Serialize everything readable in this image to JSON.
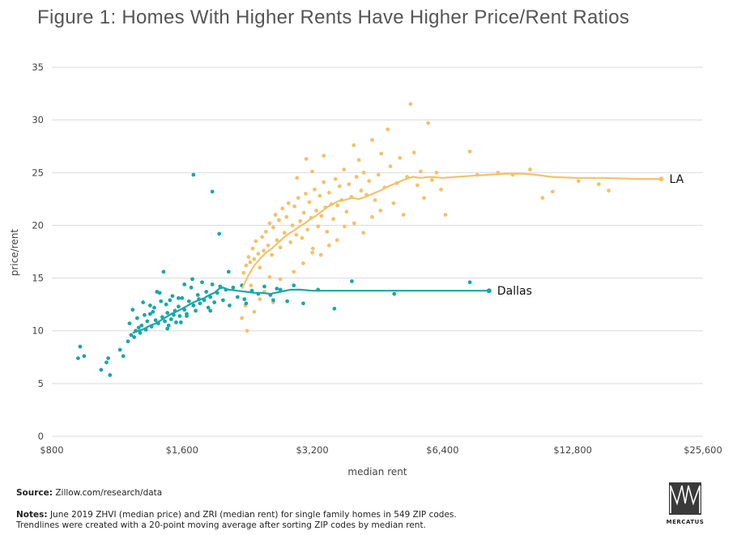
{
  "title": "Figure 1: Homes With Higher Rents Have Higher Price/Rent Ratios",
  "source_label": "Source:",
  "source_text": "Zillow.com/research/data",
  "notes_label": "Notes:",
  "notes_line1": "June 2019 ZHVI (median price) and ZRI (median rent) for single family homes in 549 ZIP codes.",
  "notes_line2": "Trendlines were created with a 20-point moving average after sorting ZIP codes by median rent.",
  "logo_text": "MERCATUS",
  "colors": {
    "LA": "#f2c26b",
    "Dallas": "#1aa7a8",
    "grid": "#d9d9d9"
  },
  "chart_data": {
    "type": "scatter",
    "xlabel": "median rent",
    "ylabel": "price/rent",
    "x_scale": "log2",
    "xlim": [
      800,
      25600
    ],
    "ylim": [
      0,
      35
    ],
    "grid": "horizontal",
    "x_ticks": [
      800,
      1600,
      3200,
      6400,
      12800,
      25600
    ],
    "x_tick_labels": [
      "$800",
      "$1,600",
      "$3,200",
      "$6,400",
      "$12,800",
      "$25,600"
    ],
    "y_ticks": [
      0,
      5,
      10,
      15,
      20,
      25,
      30,
      35
    ],
    "series": [
      {
        "name": "LA",
        "kind": "scatter",
        "points": [
          [
            2220,
            15.5
          ],
          [
            2250,
            16.2
          ],
          [
            2280,
            17.0
          ],
          [
            2300,
            16.5
          ],
          [
            2330,
            17.8
          ],
          [
            2350,
            16.8
          ],
          [
            2370,
            18.5
          ],
          [
            2400,
            17.3
          ],
          [
            2420,
            16.0
          ],
          [
            2450,
            18.9
          ],
          [
            2470,
            17.6
          ],
          [
            2500,
            19.4
          ],
          [
            2530,
            18.1
          ],
          [
            2550,
            20.2
          ],
          [
            2580,
            17.2
          ],
          [
            2600,
            19.8
          ],
          [
            2630,
            21.0
          ],
          [
            2650,
            18.6
          ],
          [
            2680,
            20.5
          ],
          [
            2700,
            17.9
          ],
          [
            2730,
            21.6
          ],
          [
            2760,
            19.3
          ],
          [
            2790,
            20.8
          ],
          [
            2820,
            22.1
          ],
          [
            2850,
            18.4
          ],
          [
            2880,
            20.0
          ],
          [
            2910,
            21.8
          ],
          [
            2940,
            19.1
          ],
          [
            2970,
            22.6
          ],
          [
            3000,
            20.4
          ],
          [
            3030,
            18.8
          ],
          [
            3060,
            21.2
          ],
          [
            3090,
            23.0
          ],
          [
            3120,
            19.6
          ],
          [
            3150,
            22.2
          ],
          [
            3180,
            20.7
          ],
          [
            3210,
            17.8
          ],
          [
            3240,
            23.4
          ],
          [
            3270,
            21.4
          ],
          [
            3300,
            19.9
          ],
          [
            3330,
            22.8
          ],
          [
            3360,
            20.9
          ],
          [
            3400,
            24.1
          ],
          [
            3430,
            21.7
          ],
          [
            3460,
            19.4
          ],
          [
            3500,
            23.1
          ],
          [
            3540,
            22.0
          ],
          [
            3580,
            20.6
          ],
          [
            3620,
            24.4
          ],
          [
            3660,
            21.9
          ],
          [
            3700,
            23.7
          ],
          [
            3740,
            22.4
          ],
          [
            3790,
            25.3
          ],
          [
            3840,
            21.3
          ],
          [
            3890,
            23.9
          ],
          [
            3940,
            22.7
          ],
          [
            3990,
            27.6
          ],
          [
            4050,
            24.6
          ],
          [
            4100,
            26.2
          ],
          [
            4150,
            23.3
          ],
          [
            4210,
            25.0
          ],
          [
            4270,
            22.9
          ],
          [
            4330,
            24.2
          ],
          [
            4400,
            28.1
          ],
          [
            4470,
            22.4
          ],
          [
            4550,
            24.8
          ],
          [
            4620,
            26.8
          ],
          [
            4700,
            23.6
          ],
          [
            4780,
            29.1
          ],
          [
            4850,
            25.6
          ],
          [
            4930,
            22.1
          ],
          [
            5020,
            24.0
          ],
          [
            5100,
            26.4
          ],
          [
            5200,
            21.0
          ],
          [
            5300,
            24.6
          ],
          [
            5400,
            31.5
          ],
          [
            5500,
            26.9
          ],
          [
            5600,
            23.8
          ],
          [
            5700,
            25.1
          ],
          [
            5800,
            22.6
          ],
          [
            5930,
            29.7
          ],
          [
            6050,
            24.3
          ],
          [
            6200,
            25.0
          ],
          [
            6350,
            23.4
          ],
          [
            6500,
            21.0
          ],
          [
            7400,
            27.0
          ],
          [
            7700,
            24.8
          ],
          [
            8600,
            25.0
          ],
          [
            9300,
            24.8
          ],
          [
            10200,
            25.3
          ],
          [
            10900,
            22.6
          ],
          [
            11500,
            23.2
          ],
          [
            13200,
            24.2
          ],
          [
            14700,
            23.9
          ],
          [
            15500,
            23.3
          ],
          [
            2350,
            11.8
          ],
          [
            2200,
            11.2
          ],
          [
            2260,
            10.0
          ],
          [
            2480,
            13.7
          ],
          [
            2600,
            12.7
          ],
          [
            2240,
            12.4
          ],
          [
            2310,
            14.3
          ],
          [
            2420,
            13.0
          ],
          [
            2550,
            15.1
          ],
          [
            2700,
            14.9
          ],
          [
            3050,
            16.4
          ],
          [
            2900,
            15.6
          ],
          [
            3200,
            17.4
          ],
          [
            3350,
            17.2
          ],
          [
            3500,
            18.1
          ],
          [
            3650,
            18.6
          ],
          [
            3800,
            19.9
          ],
          [
            4000,
            20.2
          ],
          [
            4200,
            19.3
          ],
          [
            4400,
            20.8
          ],
          [
            4600,
            21.4
          ],
          [
            3100,
            26.3
          ],
          [
            3400,
            26.6
          ],
          [
            3200,
            25.1
          ],
          [
            2950,
            24.5
          ]
        ]
      },
      {
        "name": "LA trend",
        "kind": "line",
        "points": [
          [
            2200,
            14.0
          ],
          [
            2280,
            15.3
          ],
          [
            2350,
            16.2
          ],
          [
            2430,
            16.9
          ],
          [
            2500,
            17.4
          ],
          [
            2580,
            17.8
          ],
          [
            2660,
            18.3
          ],
          [
            2740,
            18.8
          ],
          [
            2820,
            19.2
          ],
          [
            2900,
            19.5
          ],
          [
            2990,
            19.9
          ],
          [
            3080,
            20.2
          ],
          [
            3170,
            20.6
          ],
          [
            3260,
            20.9
          ],
          [
            3360,
            21.3
          ],
          [
            3460,
            21.7
          ],
          [
            3560,
            22.0
          ],
          [
            3680,
            22.3
          ],
          [
            3800,
            22.4
          ],
          [
            3950,
            22.6
          ],
          [
            4100,
            22.5
          ],
          [
            4250,
            22.7
          ],
          [
            4420,
            23.0
          ],
          [
            4600,
            23.3
          ],
          [
            4800,
            23.7
          ],
          [
            5000,
            24.0
          ],
          [
            5200,
            24.3
          ],
          [
            5450,
            24.6
          ],
          [
            5700,
            24.5
          ],
          [
            6000,
            24.6
          ],
          [
            6400,
            24.5
          ],
          [
            6900,
            24.6
          ],
          [
            7500,
            24.7
          ],
          [
            8200,
            24.8
          ],
          [
            9000,
            24.9
          ],
          [
            9800,
            24.9
          ],
          [
            10500,
            24.8
          ],
          [
            11400,
            24.6
          ],
          [
            13000,
            24.5
          ],
          [
            15000,
            24.5
          ],
          [
            18000,
            24.4
          ],
          [
            20500,
            24.4
          ]
        ]
      },
      {
        "name": "Dallas",
        "kind": "scatter",
        "points": [
          [
            920,
            7.4
          ],
          [
            930,
            8.5
          ],
          [
            950,
            7.6
          ],
          [
            1040,
            6.3
          ],
          [
            1070,
            7.0
          ],
          [
            1080,
            7.4
          ],
          [
            1090,
            5.8
          ],
          [
            1150,
            8.2
          ],
          [
            1170,
            7.6
          ],
          [
            1200,
            9.0
          ],
          [
            1220,
            9.6
          ],
          [
            1230,
            12.0
          ],
          [
            1250,
            10.0
          ],
          [
            1260,
            11.2
          ],
          [
            1280,
            9.8
          ],
          [
            1290,
            10.5
          ],
          [
            1300,
            12.7
          ],
          [
            1320,
            10.1
          ],
          [
            1330,
            10.9
          ],
          [
            1350,
            11.6
          ],
          [
            1360,
            10.4
          ],
          [
            1380,
            12.2
          ],
          [
            1390,
            11.0
          ],
          [
            1410,
            10.7
          ],
          [
            1420,
            13.6
          ],
          [
            1440,
            11.3
          ],
          [
            1450,
            15.6
          ],
          [
            1460,
            10.9
          ],
          [
            1470,
            12.5
          ],
          [
            1480,
            11.7
          ],
          [
            1490,
            10.5
          ],
          [
            1500,
            12.9
          ],
          [
            1510,
            11.1
          ],
          [
            1520,
            13.3
          ],
          [
            1540,
            11.9
          ],
          [
            1550,
            10.8
          ],
          [
            1570,
            12.3
          ],
          [
            1580,
            11.4
          ],
          [
            1600,
            13.1
          ],
          [
            1620,
            12.0
          ],
          [
            1640,
            11.6
          ],
          [
            1660,
            12.8
          ],
          [
            1680,
            14.1
          ],
          [
            1700,
            12.4
          ],
          [
            1720,
            11.9
          ],
          [
            1740,
            13.4
          ],
          [
            1760,
            12.6
          ],
          [
            1780,
            14.6
          ],
          [
            1800,
            12.9
          ],
          [
            1820,
            13.7
          ],
          [
            1840,
            12.2
          ],
          [
            1860,
            13.2
          ],
          [
            1880,
            14.4
          ],
          [
            1900,
            12.7
          ],
          [
            1930,
            13.6
          ],
          [
            1960,
            14.2
          ],
          [
            1990,
            12.9
          ],
          [
            2020,
            13.9
          ],
          [
            2060,
            12.4
          ],
          [
            2100,
            14.1
          ],
          [
            2150,
            13.2
          ],
          [
            2200,
            14.3
          ],
          [
            2250,
            12.6
          ],
          [
            2320,
            13.8
          ],
          [
            2400,
            13.5
          ],
          [
            2480,
            14.2
          ],
          [
            2560,
            13.4
          ],
          [
            2700,
            13.9
          ],
          [
            2800,
            12.8
          ],
          [
            2900,
            14.3
          ],
          [
            3050,
            12.6
          ],
          [
            3300,
            13.9
          ],
          [
            3600,
            12.1
          ],
          [
            3950,
            14.7
          ],
          [
            4950,
            13.5
          ],
          [
            7400,
            14.6
          ],
          [
            1700,
            24.8
          ],
          [
            1880,
            23.2
          ],
          [
            1950,
            19.2
          ],
          [
            1620,
            14.4
          ],
          [
            1350,
            12.4
          ],
          [
            1400,
            13.7
          ],
          [
            1570,
            13.1
          ],
          [
            1690,
            14.9
          ],
          [
            1750,
            13.0
          ],
          [
            1640,
            11.4
          ],
          [
            1590,
            10.8
          ],
          [
            1530,
            11.5
          ],
          [
            1480,
            10.2
          ],
          [
            1430,
            12.8
          ],
          [
            1370,
            11.8
          ],
          [
            1310,
            11.5
          ],
          [
            1270,
            10.3
          ],
          [
            1240,
            9.4
          ],
          [
            1210,
            10.7
          ],
          [
            1860,
            11.9
          ],
          [
            2050,
            15.6
          ],
          [
            2230,
            13.0
          ],
          [
            2600,
            12.9
          ],
          [
            2650,
            14.0
          ]
        ]
      },
      {
        "name": "Dallas trend",
        "kind": "line",
        "points": [
          [
            1230,
            9.8
          ],
          [
            1270,
            10.0
          ],
          [
            1310,
            10.2
          ],
          [
            1350,
            10.5
          ],
          [
            1390,
            10.7
          ],
          [
            1430,
            11.0
          ],
          [
            1470,
            11.3
          ],
          [
            1510,
            11.6
          ],
          [
            1550,
            11.8
          ],
          [
            1600,
            12.1
          ],
          [
            1650,
            12.4
          ],
          [
            1700,
            12.7
          ],
          [
            1750,
            12.9
          ],
          [
            1800,
            13.1
          ],
          [
            1850,
            13.4
          ],
          [
            1900,
            13.6
          ],
          [
            1950,
            14.0
          ],
          [
            1990,
            14.1
          ],
          [
            2050,
            13.9
          ],
          [
            2150,
            13.8
          ],
          [
            2250,
            13.7
          ],
          [
            2350,
            13.6
          ],
          [
            2450,
            13.6
          ],
          [
            2560,
            13.5
          ],
          [
            2700,
            13.7
          ],
          [
            2850,
            13.9
          ],
          [
            3000,
            13.9
          ],
          [
            3200,
            13.8
          ],
          [
            3500,
            13.8
          ],
          [
            3800,
            13.8
          ],
          [
            4300,
            13.8
          ],
          [
            5000,
            13.8
          ],
          [
            6000,
            13.8
          ],
          [
            7000,
            13.8
          ],
          [
            8200,
            13.8
          ]
        ]
      }
    ],
    "annotations": [
      {
        "text": "LA",
        "x": 20500,
        "y": 24.4
      },
      {
        "text": "Dallas",
        "x": 8200,
        "y": 13.8
      }
    ]
  }
}
